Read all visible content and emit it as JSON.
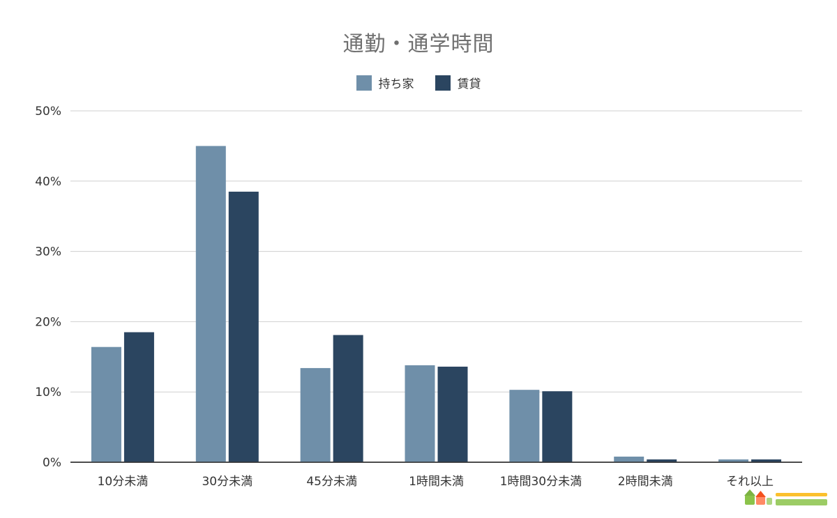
{
  "chart_data": {
    "type": "bar",
    "title": "通勤・通学時間",
    "categories": [
      "10分未満",
      "30分未満",
      "45分未満",
      "1時間未満",
      "1時間30分未満",
      "2時間未満",
      "それ以上"
    ],
    "series": [
      {
        "name": "持ち家",
        "color": "#6f8fa9",
        "values": [
          16.4,
          45.0,
          13.4,
          13.8,
          10.3,
          0.8,
          0.4
        ]
      },
      {
        "name": "賃貸",
        "color": "#2b4560",
        "values": [
          18.5,
          38.5,
          18.1,
          13.6,
          10.1,
          0.4,
          0.4
        ]
      }
    ],
    "yticks": [
      "0%",
      "10%",
      "20%",
      "30%",
      "40%",
      "50%"
    ],
    "ylim": [
      0,
      50
    ],
    "grid": true,
    "legend_position": "top-center"
  }
}
